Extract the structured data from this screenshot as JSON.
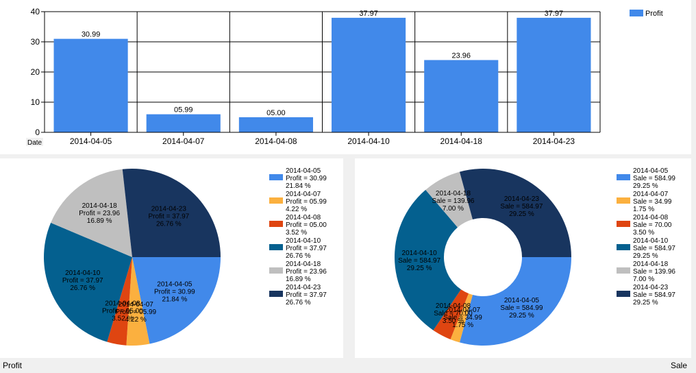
{
  "bar_chart": {
    "x_axis_title": "Date",
    "legend": "Profit",
    "y_ticks": [
      0,
      10,
      20,
      30,
      40
    ]
  },
  "pie_profit": {
    "legend_items": [
      {
        "date": "2014-04-05",
        "line": "Profit = 30.99",
        "percent": "21.84 %"
      },
      {
        "date": "2014-04-07",
        "line": "Profit = 05.99",
        "percent": "4.22 %"
      },
      {
        "date": "2014-04-08",
        "line": "Profit = 05.00",
        "percent": "3.52 %"
      },
      {
        "date": "2014-04-10",
        "line": "Profit = 37.97",
        "percent": "26.76 %"
      },
      {
        "date": "2014-04-18",
        "line": "Profit = 23.96",
        "percent": "16.89 %"
      },
      {
        "date": "2014-04-23",
        "line": "Profit = 37.97",
        "percent": "26.76 %"
      }
    ]
  },
  "pie_sale": {
    "legend_items": [
      {
        "date": "2014-04-05",
        "line": "Sale = 584.99",
        "percent": "29.25 %"
      },
      {
        "date": "2014-04-07",
        "line": "Sale = 34.99",
        "percent": "1.75 %"
      },
      {
        "date": "2014-04-08",
        "line": "Sale = 70.00",
        "percent": "3.50 %"
      },
      {
        "date": "2014-04-10",
        "line": "Sale = 584.97",
        "percent": "29.25 %"
      },
      {
        "date": "2014-04-18",
        "line": "Sale = 139.96",
        "percent": "7.00 %"
      },
      {
        "date": "2014-04-23",
        "line": "Sale = 584.97",
        "percent": "29.25 %"
      }
    ]
  },
  "captions": {
    "left": "Profit",
    "right": "Sale"
  },
  "chart_data": [
    {
      "type": "bar",
      "categories": [
        "2014-04-05",
        "2014-04-07",
        "2014-04-08",
        "2014-04-10",
        "2014-04-18",
        "2014-04-23"
      ],
      "series": [
        {
          "name": "Profit",
          "values": [
            30.99,
            5.99,
            5.0,
            37.97,
            23.96,
            37.97
          ]
        }
      ],
      "data_labels": [
        "30.99",
        "05.99",
        "05.00",
        "37.97",
        "23.96",
        "37.97"
      ],
      "xlabel": "Date",
      "ylim": [
        0,
        40
      ],
      "grid": true,
      "legend": "top-right",
      "color": "#4189ea"
    },
    {
      "type": "pie",
      "categories": [
        "2014-04-05",
        "2014-04-07",
        "2014-04-08",
        "2014-04-10",
        "2014-04-18",
        "2014-04-23"
      ],
      "values": [
        30.99,
        5.99,
        5.0,
        37.97,
        23.96,
        37.97
      ],
      "percents": [
        21.84,
        4.22,
        3.52,
        26.76,
        16.89,
        26.76
      ],
      "legend": "right",
      "colors": [
        "#4189ea",
        "#fbb03f",
        "#df4511",
        "#04608f",
        "#bfbfbf",
        "#18355f"
      ]
    },
    {
      "type": "pie",
      "style": "doughnut",
      "categories": [
        "2014-04-05",
        "2014-04-07",
        "2014-04-08",
        "2014-04-10",
        "2014-04-18",
        "2014-04-23"
      ],
      "values": [
        584.99,
        34.99,
        70.0,
        584.97,
        139.96,
        584.97
      ],
      "percents": [
        29.25,
        1.75,
        3.5,
        29.25,
        7.0,
        29.25
      ],
      "legend": "right",
      "colors": [
        "#4189ea",
        "#fbb03f",
        "#df4511",
        "#04608f",
        "#bfbfbf",
        "#18355f"
      ]
    }
  ]
}
